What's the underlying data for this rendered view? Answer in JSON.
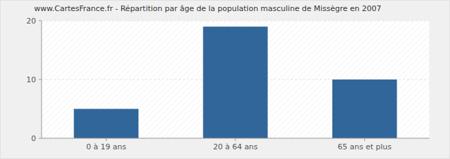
{
  "chart_data": {
    "type": "bar",
    "title": "www.CartesFrance.fr - Répartition par âge de la population masculine de Missègre en 2007",
    "categories": [
      "0 à 19 ans",
      "20 à 64 ans",
      "65 ans et plus"
    ],
    "values": [
      5,
      19,
      10
    ],
    "color": "#31669a",
    "ylim": [
      0,
      20
    ],
    "yticks": [
      0,
      10,
      20
    ],
    "grid": true
  }
}
